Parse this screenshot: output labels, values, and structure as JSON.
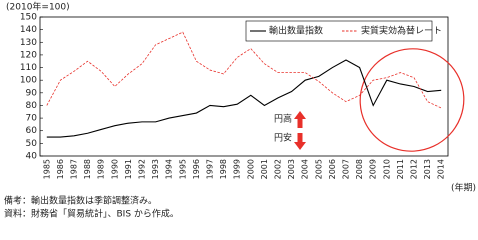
{
  "chart_data": {
    "type": "line",
    "y_label": "(2010年=100)",
    "x_label": "(年期)",
    "categories": [
      "1985",
      "1986",
      "1987",
      "1988",
      "1989",
      "1990",
      "1991",
      "1992",
      "1993",
      "1994",
      "1995",
      "1996",
      "1997",
      "1998",
      "1999",
      "2000",
      "2001",
      "2002",
      "2003",
      "2004",
      "2005",
      "2006",
      "2007",
      "2008",
      "2009",
      "2010",
      "2011",
      "2012",
      "2013",
      "2014"
    ],
    "series": [
      {
        "name": "輸出数量指数",
        "color": "#000000",
        "line_style": "solid",
        "values": [
          55,
          55,
          56,
          58,
          61,
          64,
          66,
          67,
          67,
          70,
          72,
          74,
          80,
          79,
          81,
          88,
          80,
          86,
          91,
          100,
          103,
          110,
          116,
          110,
          80,
          100,
          97,
          95,
          91,
          92
        ]
      },
      {
        "name": "実質実効為替レート",
        "color": "#e8302a",
        "line_style": "dashed",
        "values": [
          80,
          100,
          107,
          115,
          107,
          95,
          105,
          113,
          128,
          133,
          138,
          115,
          108,
          105,
          118,
          125,
          113,
          106,
          106,
          106,
          99,
          90,
          83,
          88,
          100,
          102,
          106,
          102,
          83,
          78
        ]
      }
    ],
    "ylim": [
      40,
      150
    ],
    "yticks": [
      40,
      50,
      60,
      70,
      80,
      90,
      100,
      110,
      120,
      130,
      140,
      150
    ],
    "grid": false,
    "legend": "top-right",
    "annotations": [
      "円高",
      "円安"
    ],
    "notes": [
      "備考：輸出数量指数は季節調整済み。",
      "資料：財務省「貿易統計」、BIS から作成。"
    ]
  }
}
